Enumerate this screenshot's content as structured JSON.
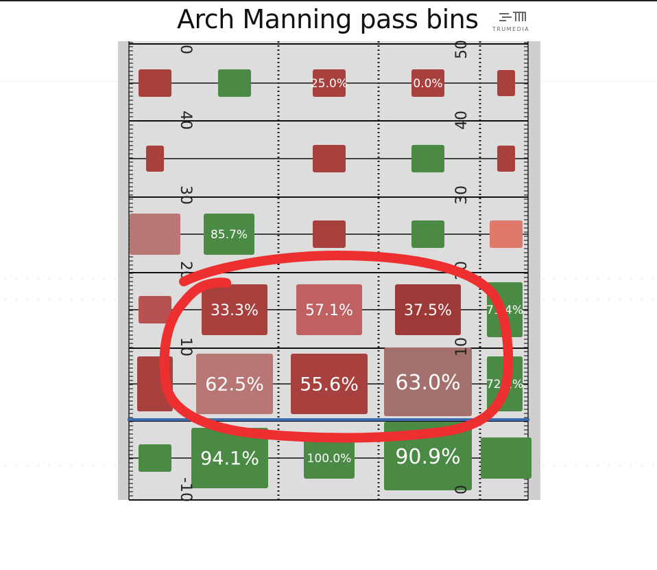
{
  "page": {
    "title": "Arch Manning pass bins",
    "logo_text": "TRUMEDIA",
    "logo_icon": "trumedia-logo-icon"
  },
  "chart_data": {
    "type": "heatmap",
    "title": "Arch Manning pass bins",
    "ylabel": "",
    "xlabel": "",
    "yard_labels": [
      "50",
      "40",
      "30",
      "20",
      "10",
      "0",
      "-10"
    ],
    "columns": 5,
    "colors": {
      "green": "#4a8a45",
      "red": "#a8403e",
      "dark_red": "#9d3936",
      "mid_red": "#b85250",
      "pink": "#b87775",
      "muted_pink": "#a3706d",
      "salmon": "#e0786c",
      "line_of_scrimmage": "#3d6bb2",
      "highlight_circle": "#ee2f2f",
      "field": "#dcdcdc"
    },
    "bins": [
      {
        "row": 0,
        "col": 0,
        "label": "",
        "color": "#a8403e",
        "size": "small"
      },
      {
        "row": 0,
        "col": 1,
        "label": "",
        "color": "#4a8a45",
        "size": "small"
      },
      {
        "row": 0,
        "col": 2,
        "label": "25.0%",
        "color": "#a8403e",
        "size": "small"
      },
      {
        "row": 0,
        "col": 3,
        "label": "0.0%",
        "color": "#a8403e",
        "size": "small"
      },
      {
        "row": 0,
        "col": 4,
        "label": "",
        "color": "#a8403e",
        "size": "tiny"
      },
      {
        "row": 1,
        "col": 0,
        "label": "",
        "color": "#a8403e",
        "size": "tiny"
      },
      {
        "row": 1,
        "col": 2,
        "label": "",
        "color": "#a8403e",
        "size": "small"
      },
      {
        "row": 1,
        "col": 3,
        "label": "",
        "color": "#4a8a45",
        "size": "small"
      },
      {
        "row": 1,
        "col": 4,
        "label": "",
        "color": "#a8403e",
        "size": "tiny"
      },
      {
        "row": 2,
        "col": 0,
        "label": "",
        "color": "#b87775",
        "size": "medium"
      },
      {
        "row": 2,
        "col": 1,
        "label": "85.7%",
        "color": "#4a8a45",
        "size": "medium"
      },
      {
        "row": 2,
        "col": 2,
        "label": "",
        "color": "#a8403e",
        "size": "small"
      },
      {
        "row": 2,
        "col": 3,
        "label": "",
        "color": "#4a8a45",
        "size": "small"
      },
      {
        "row": 2,
        "col": 4,
        "label": "",
        "color": "#e0786c",
        "size": "small"
      },
      {
        "row": 3,
        "col": 0,
        "label": "",
        "color": "#b85250",
        "size": "small"
      },
      {
        "row": 3,
        "col": 1,
        "label": "33.3%",
        "color": "#a8403e",
        "size": "large"
      },
      {
        "row": 3,
        "col": 2,
        "label": "57.1%",
        "color": "#c06060",
        "size": "large"
      },
      {
        "row": 3,
        "col": 3,
        "label": "37.5%",
        "color": "#9d3936",
        "size": "large"
      },
      {
        "row": 3,
        "col": 4,
        "label": "71.4%",
        "color": "#4a8a45",
        "size": "edge"
      },
      {
        "row": 4,
        "col": 0,
        "label": "",
        "color": "#a8403e",
        "size": "edge"
      },
      {
        "row": 4,
        "col": 1,
        "label": "62.5%",
        "color": "#b87775",
        "size": "xlarge"
      },
      {
        "row": 4,
        "col": 2,
        "label": "55.6%",
        "color": "#a8403e",
        "size": "xlarge"
      },
      {
        "row": 4,
        "col": 3,
        "label": "63.0%",
        "color": "#a3706d",
        "size": "xxlarge"
      },
      {
        "row": 4,
        "col": 4,
        "label": "72.2%",
        "color": "#4a8a45",
        "size": "edge"
      },
      {
        "row": 5,
        "col": 0,
        "label": "",
        "color": "#4a8a45",
        "size": "small"
      },
      {
        "row": 5,
        "col": 1,
        "label": "94.1%",
        "color": "#4a8a45",
        "size": "xlarge"
      },
      {
        "row": 5,
        "col": 2,
        "label": "100.0%",
        "color": "#4a8a45",
        "size": "medium"
      },
      {
        "row": 5,
        "col": 3,
        "label": "90.9%",
        "color": "#4a8a45",
        "size": "xxlarge"
      },
      {
        "row": 5,
        "col": 4,
        "label": "",
        "color": "#4a8a45",
        "size": "medium"
      }
    ],
    "highlighted_rows": [
      3,
      4
    ],
    "grid": true,
    "legend": "none"
  }
}
